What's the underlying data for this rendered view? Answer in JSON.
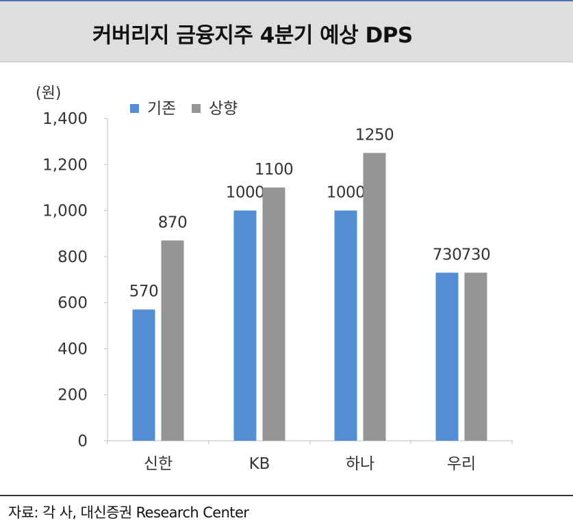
{
  "title": "커버리지 금융지주 4분기 예상 DPS",
  "source": "자료: 각 사, 대신증권 Research Center",
  "chart_data": {
    "type": "bar",
    "ylabel": "(원)",
    "ylim": [
      0,
      1400
    ],
    "yticks": [
      0,
      200,
      400,
      600,
      800,
      1000,
      1200,
      1400
    ],
    "ytick_labels": [
      "0",
      "200",
      "400",
      "600",
      "800",
      "1,000",
      "1,200",
      "1,400"
    ],
    "categories": [
      "신한",
      "KB",
      "하나",
      "우리"
    ],
    "series": [
      {
        "name": "기존",
        "color": "#558ed5",
        "values": [
          570,
          1000,
          1000,
          730
        ],
        "labels": [
          "570",
          "1000",
          "1000",
          "730"
        ]
      },
      {
        "name": "상향",
        "color": "#959595",
        "values": [
          870,
          1100,
          1250,
          730
        ],
        "labels": [
          "870",
          "1100",
          "1250",
          "730"
        ]
      }
    ],
    "legend_position": "top-left",
    "grid": false
  }
}
